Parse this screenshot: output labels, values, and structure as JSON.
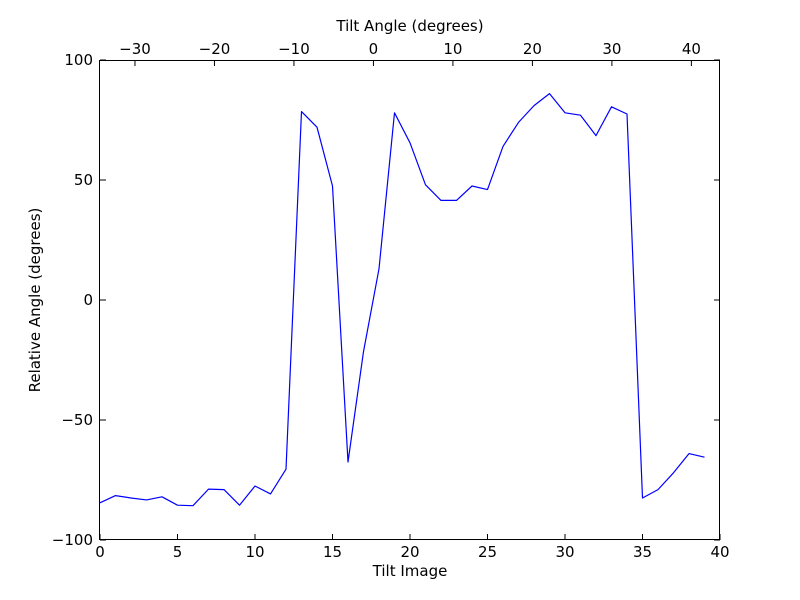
{
  "chart_data": {
    "type": "line",
    "xlabel": "Tilt Image",
    "ylabel": "Relative Angle (degrees)",
    "top_xlabel": "Tilt Angle (degrees)",
    "xlim": [
      0,
      40
    ],
    "ylim": [
      -100,
      100
    ],
    "top_xlim": [
      -34.4,
      43.6
    ],
    "x_ticks": [
      0,
      5,
      10,
      15,
      20,
      25,
      30,
      35,
      40
    ],
    "x_tick_labels": [
      "0",
      "5",
      "10",
      "15",
      "20",
      "25",
      "30",
      "35",
      "40"
    ],
    "y_ticks": [
      -100,
      -50,
      0,
      50,
      100
    ],
    "y_tick_labels": [
      "−100",
      "−50",
      "0",
      "50",
      "100"
    ],
    "top_x_ticks": [
      -30,
      -20,
      -10,
      0,
      10,
      20,
      30,
      40
    ],
    "top_x_tick_labels": [
      "−30",
      "−20",
      "−10",
      "0",
      "10",
      "20",
      "30",
      "40"
    ],
    "grid": false,
    "line_color": "#0000ff",
    "series": [
      {
        "x": [
          0,
          1,
          2,
          3,
          4,
          5,
          6,
          7,
          8,
          9,
          10,
          11,
          12,
          13,
          14,
          15,
          16,
          17,
          18,
          19,
          20,
          21,
          22,
          23,
          24,
          25,
          26,
          27,
          28,
          29,
          30,
          31,
          32,
          33,
          34,
          35,
          36,
          37,
          38,
          39
        ],
        "values": [
          -84.5,
          -81.5,
          -82.5,
          -83.3,
          -82,
          -85.5,
          -85.7,
          -78.8,
          -79,
          -85.5,
          -77.5,
          -80.8,
          -70.5,
          78.5,
          72,
          47.5,
          -67.5,
          -21.5,
          13,
          78,
          65.5,
          48,
          41.5,
          41.5,
          47.5,
          46,
          64,
          74,
          81,
          86,
          78,
          77,
          68.5,
          80.5,
          77.5,
          -82.5,
          -79,
          -72,
          -64,
          -65.5
        ]
      }
    ]
  }
}
